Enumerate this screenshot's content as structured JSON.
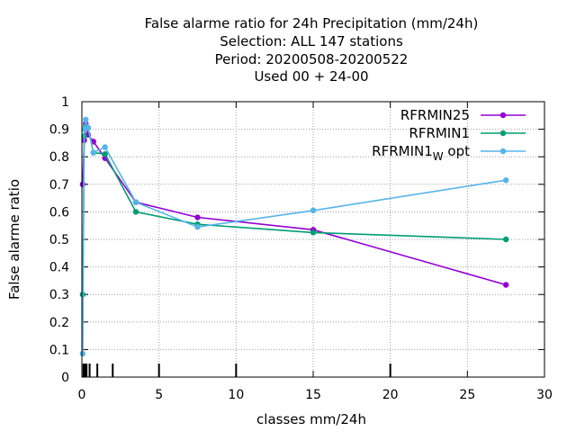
{
  "chart_data": {
    "type": "line",
    "title": [
      "False alarme ratio  for 24h Precipitation (mm/24h)",
      "Selection: ALL    147 stations",
      "Period: 20200508-20200522",
      "Used  00 + 24-00"
    ],
    "xlabel": "classes mm/24h",
    "ylabel": "False alarme ratio",
    "xlim": [
      0,
      30
    ],
    "ylim": [
      0,
      1
    ],
    "xticks": [
      0,
      5,
      10,
      15,
      20,
      25,
      30
    ],
    "yticks": [
      0,
      0.1,
      0.2,
      0.3,
      0.4,
      0.5,
      0.6,
      0.7,
      0.8,
      0.9,
      1
    ],
    "xtick_labels": [
      "0",
      "5",
      "10",
      "15",
      "20",
      "25",
      "30"
    ],
    "ytick_labels": [
      "0",
      "0.1",
      "0.2",
      "0.3",
      "0.4",
      "0.5",
      "0.6",
      "0.7",
      "0.8",
      "0.9",
      "1"
    ],
    "grid": true,
    "legend_position": "top-right",
    "class_limits": [
      0.1,
      0.2,
      0.3,
      0.5,
      1,
      2,
      5,
      10,
      20
    ],
    "series": [
      {
        "name": "RFRMIN25",
        "color": "#9400d3",
        "x": [
          0.05,
          0.15,
          0.25,
          0.4,
          0.75,
          1.5,
          3.5,
          7.5,
          15,
          27.5
        ],
        "y": [
          0.7,
          0.86,
          0.92,
          0.88,
          0.855,
          0.795,
          0.635,
          0.58,
          0.535,
          0.335
        ]
      },
      {
        "name": "RFRMIN1",
        "color": "#009e73",
        "x": [
          0.05,
          0.15,
          0.25,
          0.4,
          0.75,
          1.5,
          3.5,
          7.5,
          15,
          27.5
        ],
        "y": [
          0.3,
          0.875,
          0.91,
          0.905,
          0.815,
          0.81,
          0.6,
          0.555,
          0.525,
          0.5
        ]
      },
      {
        "name": "RFRMIN1",
        "name_subscript": "W",
        "name_suffix": "opt",
        "color": "#56b4e9",
        "x": [
          0.05,
          0.15,
          0.25,
          0.4,
          0.75,
          1.5,
          3.5,
          7.5,
          15,
          27.5
        ],
        "y": [
          0.085,
          0.9,
          0.935,
          0.905,
          0.815,
          0.835,
          0.635,
          0.545,
          0.605,
          0.715
        ]
      }
    ]
  }
}
